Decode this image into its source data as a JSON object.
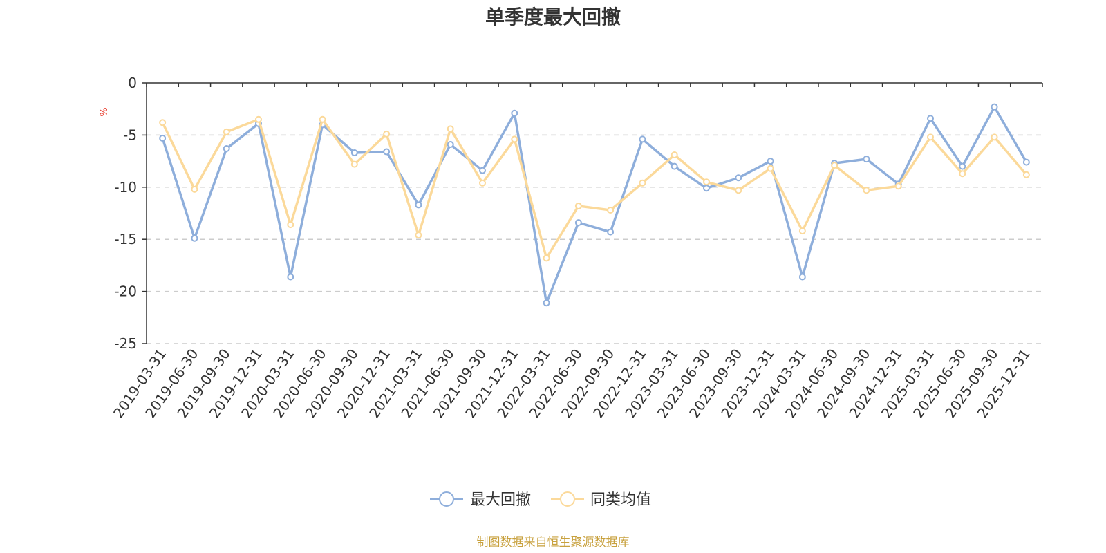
{
  "chart_data": {
    "type": "line",
    "title": "单季度最大回撤",
    "ylabel": "%",
    "ylim": [
      -25,
      0
    ],
    "yticks": [
      0,
      -5,
      -10,
      -15,
      -20,
      -25
    ],
    "grid": "horizontal-dashed",
    "legend_position": "bottom-center",
    "categories": [
      "2019-03-31",
      "2019-06-30",
      "2019-09-30",
      "2019-12-31",
      "2020-03-31",
      "2020-06-30",
      "2020-09-30",
      "2020-12-31",
      "2021-03-31",
      "2021-06-30",
      "2021-09-30",
      "2021-12-31",
      "2022-03-31",
      "2022-06-30",
      "2022-09-30",
      "2022-12-31",
      "2023-03-31",
      "2023-06-30",
      "2023-09-30",
      "2023-12-31",
      "2024-03-31",
      "2024-06-30",
      "2024-09-30",
      "2024-12-31",
      "2025-03-31",
      "2025-06-30",
      "2025-09-30",
      "2025-12-31"
    ],
    "series": [
      {
        "name": "最大回撤",
        "color": "#8eaedb",
        "values": [
          -5.3,
          -14.9,
          -6.3,
          -3.9,
          -18.6,
          -4.0,
          -6.7,
          -6.6,
          -11.7,
          -5.9,
          -8.4,
          -2.9,
          -21.1,
          -13.4,
          -14.3,
          -5.4,
          -8.0,
          -10.1,
          -9.1,
          -7.5,
          -18.6,
          -7.7,
          -7.3,
          -9.7,
          -3.4,
          -8.0,
          -2.3,
          -7.6
        ]
      },
      {
        "name": "同类均值",
        "color": "#fbd99a",
        "values": [
          -3.8,
          -10.2,
          -4.7,
          -3.5,
          -13.6,
          -3.5,
          -7.8,
          -4.9,
          -14.6,
          -4.4,
          -9.6,
          -5.4,
          -16.8,
          -11.8,
          -12.2,
          -9.6,
          -6.9,
          -9.5,
          -10.3,
          -8.2,
          -14.2,
          -7.9,
          -10.3,
          -9.9,
          -5.2,
          -8.7,
          -5.2,
          -8.8
        ]
      }
    ],
    "source": "制图数据来自恒生聚源数据库",
    "source_color": "#c8a13e",
    "unit_color": "#e8392a",
    "axis_color": "#333333",
    "grid_color": "#cccccc"
  }
}
